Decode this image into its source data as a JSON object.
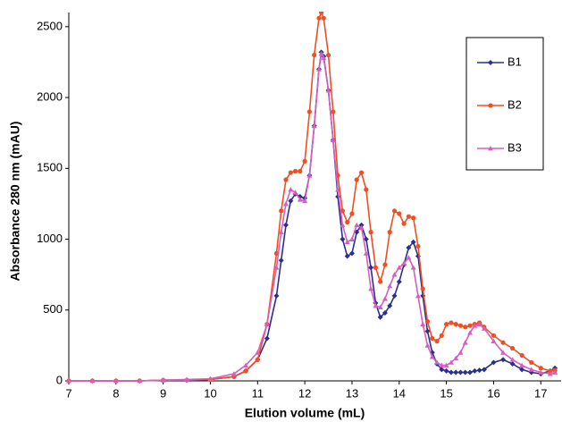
{
  "chart_data": {
    "type": "line",
    "x_label": "Elution volume (mL)",
    "y_label": "Absorbance 280 nm (mAU)",
    "xlim": [
      7,
      17.43
    ],
    "ylim": [
      0,
      2600
    ],
    "xticks": [
      7,
      8,
      9,
      10,
      11,
      12,
      13,
      14,
      15,
      16,
      17
    ],
    "yticks": [
      0,
      500,
      1000,
      1500,
      2000,
      2500
    ],
    "grid": false,
    "legend": "upper right",
    "x": [
      7,
      7.5,
      8,
      8.5,
      9,
      9.5,
      10,
      10.5,
      10.75,
      11,
      11.2,
      11.4,
      11.5,
      11.6,
      11.7,
      11.8,
      11.9,
      12.0,
      12.1,
      12.2,
      12.3,
      12.35,
      12.4,
      12.5,
      12.6,
      12.7,
      12.8,
      12.9,
      13.0,
      13.1,
      13.2,
      13.3,
      13.4,
      13.5,
      13.6,
      13.7,
      13.8,
      13.9,
      14.0,
      14.1,
      14.2,
      14.3,
      14.4,
      14.5,
      14.6,
      14.7,
      14.8,
      14.9,
      15.0,
      15.1,
      15.2,
      15.3,
      15.4,
      15.5,
      15.6,
      15.7,
      15.8,
      16.0,
      16.2,
      16.4,
      16.6,
      16.8,
      17.0,
      17.2,
      17.3
    ],
    "series": [
      {
        "name": "B1",
        "color": "#2b2f8f",
        "marker": "diamond",
        "values": [
          0,
          0,
          0,
          0,
          5,
          5,
          10,
          30,
          70,
          150,
          300,
          600,
          850,
          1100,
          1270,
          1320,
          1300,
          1290,
          1450,
          1800,
          2200,
          2320,
          2290,
          2050,
          1700,
          1300,
          1000,
          880,
          900,
          1050,
          1100,
          1000,
          800,
          550,
          450,
          480,
          530,
          600,
          700,
          820,
          940,
          980,
          880,
          600,
          350,
          200,
          120,
          80,
          70,
          60,
          60,
          60,
          60,
          60,
          70,
          75,
          80,
          130,
          150,
          120,
          80,
          60,
          50,
          70,
          90
        ]
      },
      {
        "name": "B2",
        "color": "#f04e23",
        "marker": "circle",
        "values": [
          0,
          0,
          0,
          0,
          5,
          5,
          10,
          30,
          70,
          150,
          400,
          900,
          1200,
          1420,
          1470,
          1480,
          1480,
          1550,
          1900,
          2300,
          2560,
          2600,
          2560,
          2300,
          1900,
          1450,
          1200,
          1120,
          1180,
          1420,
          1470,
          1350,
          1050,
          800,
          700,
          820,
          1050,
          1200,
          1180,
          1110,
          1160,
          1150,
          950,
          650,
          420,
          300,
          280,
          320,
          400,
          410,
          400,
          390,
          380,
          390,
          400,
          410,
          380,
          320,
          270,
          230,
          180,
          130,
          90,
          70,
          75
        ]
      },
      {
        "name": "B3",
        "color": "#d45fc0",
        "marker": "triangle",
        "values": [
          0,
          0,
          0,
          0,
          5,
          10,
          15,
          50,
          110,
          200,
          400,
          800,
          1050,
          1250,
          1350,
          1330,
          1280,
          1270,
          1450,
          1800,
          2200,
          2310,
          2280,
          2050,
          1700,
          1350,
          1100,
          980,
          1000,
          1100,
          1080,
          900,
          650,
          530,
          520,
          580,
          670,
          750,
          800,
          830,
          870,
          800,
          600,
          400,
          250,
          170,
          130,
          110,
          110,
          130,
          160,
          200,
          270,
          340,
          390,
          400,
          370,
          280,
          200,
          150,
          110,
          80,
          60,
          50,
          60
        ]
      }
    ]
  }
}
